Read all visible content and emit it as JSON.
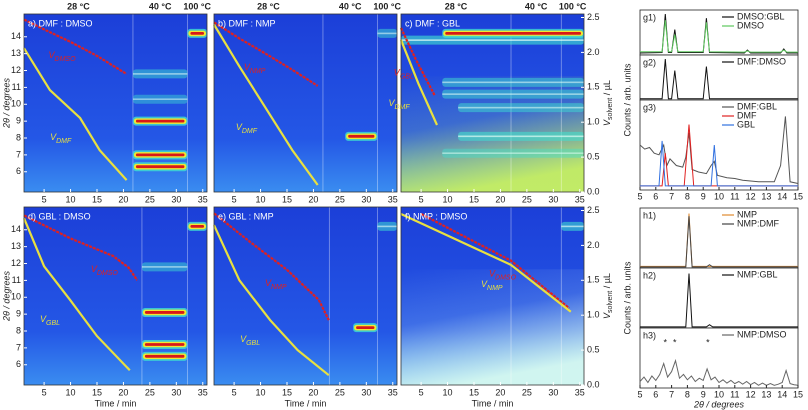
{
  "chart_data": [
    {
      "type": "heatmap",
      "title": "a) DMF : DMSO",
      "xlim": [
        1.2,
        35.8
      ],
      "ylim": [
        4.8,
        15.35
      ],
      "y2lim": [
        0,
        2.55
      ],
      "xticks": [
        5,
        10,
        15,
        20,
        25,
        30,
        35
      ],
      "yticks": [
        6,
        7,
        8,
        9,
        10,
        11,
        12,
        13,
        14
      ],
      "ylabel": "2θ / degrees",
      "phase_labels": [
        "28 °C",
        "40 °C",
        "100 °C"
      ],
      "boundaries": [
        21.8,
        32.1
      ],
      "streaks": [
        [
          14.2,
          32.1,
          35.8,
          1
        ],
        [
          11.8,
          21.8,
          32.1,
          0.3
        ],
        [
          10.3,
          21.8,
          32.1,
          0.2
        ],
        [
          9.0,
          21.8,
          32.1,
          1
        ],
        [
          7.0,
          21.8,
          32.1,
          1
        ],
        [
          6.3,
          21.8,
          32.1,
          1
        ]
      ],
      "series": [
        {
          "label": "V",
          "sub": "DMSO",
          "color": "#e02020",
          "x": [
            1.2,
            5,
            10,
            15,
            20.6
          ],
          "values": [
            2.47,
            2.33,
            2.15,
            1.95,
            1.69
          ]
        },
        {
          "label": "V",
          "sub": "DMF",
          "color": "#e8e040",
          "x": [
            1.2,
            6.1,
            11.8,
            15.5,
            20.6
          ],
          "values": [
            2.06,
            1.46,
            1.06,
            0.6,
            0.17
          ]
        }
      ]
    },
    {
      "type": "heatmap",
      "title": "b) DMF : NMP",
      "xlim": [
        1.2,
        35.8
      ],
      "ylim": [
        4.8,
        15.35
      ],
      "y2lim": [
        0,
        2.55
      ],
      "xticks": [
        5,
        10,
        15,
        20,
        25,
        30,
        35
      ],
      "phase_labels": [
        "28 °C",
        "40 °C",
        "100 °C"
      ],
      "boundaries": [
        21.8,
        32.1
      ],
      "streaks": [
        [
          14.2,
          32.1,
          35.8,
          0.3
        ],
        [
          8.1,
          26,
          32.1,
          1
        ]
      ],
      "series": [
        {
          "label": "V",
          "sub": "NMP",
          "color": "#e02020",
          "x": [
            1.2,
            6,
            11,
            16,
            20.8
          ],
          "values": [
            2.43,
            2.2,
            1.98,
            1.75,
            1.52
          ]
        },
        {
          "label": "V",
          "sub": "DMF",
          "color": "#e8e040",
          "x": [
            1.2,
            6,
            11,
            16,
            20.8
          ],
          "values": [
            2.4,
            1.8,
            1.2,
            0.6,
            0.1
          ]
        }
      ]
    },
    {
      "type": "heatmap",
      "title": "c) DMF : GBL",
      "xlim": [
        1.2,
        35.8
      ],
      "ylim": [
        4.8,
        15.35
      ],
      "y2lim": [
        0,
        2.55
      ],
      "xticks": [
        5,
        10,
        15,
        20,
        25,
        30,
        35
      ],
      "y2ticks": [
        {
          "value": 0,
          "label": "0.0"
        },
        0.5,
        {
          "value": 1,
          "label": "1.0"
        },
        1.5,
        {
          "value": 2,
          "label": "2.0"
        },
        2.5
      ],
      "y2label": {
        "main": "V",
        "sub": "solvent",
        "unit": " / µL"
      },
      "phase_labels": [
        "28 °C",
        "40 °C",
        "100 °C"
      ],
      "boundaries": [
        22,
        31.5
      ],
      "haze": "#c8f060",
      "streaks": [
        [
          14.2,
          9,
          35.8,
          0.9
        ],
        [
          13.8,
          1.2,
          35.8,
          0.6
        ],
        [
          11.3,
          9,
          35.8,
          0.3
        ],
        [
          10.6,
          9,
          35.8,
          0.3
        ],
        [
          9.8,
          12,
          35.8,
          0.3
        ],
        [
          8.1,
          12,
          35.8,
          0.5
        ],
        [
          7.1,
          9,
          35.8,
          0.2
        ]
      ],
      "series": [
        {
          "label": "V",
          "sub": "GBL",
          "color": "#e02020",
          "x": [
            1.2,
            4,
            7.6
          ],
          "values": [
            2.35,
            1.9,
            1.38
          ]
        },
        {
          "label": "V",
          "sub": "DMF",
          "color": "#e8e040",
          "x": [
            1.2,
            4.5,
            8
          ],
          "values": [
            2.18,
            1.55,
            0.96
          ]
        }
      ]
    },
    {
      "type": "heatmap",
      "title": "d) GBL : DMSO",
      "xlim": [
        1.2,
        35.8
      ],
      "ylim": [
        4.8,
        15.35
      ],
      "y2lim": [
        0,
        2.55
      ],
      "xticks": [
        5,
        10,
        15,
        20,
        25,
        30,
        35
      ],
      "yticks": [
        6,
        7,
        8,
        9,
        10,
        11,
        12,
        13,
        14
      ],
      "ylabel": "2θ / degrees",
      "xlabel": "Time / min",
      "boundaries": [
        23.5,
        32.1
      ],
      "streaks": [
        [
          14.2,
          32.1,
          35.8,
          1
        ],
        [
          11.8,
          23.5,
          32.1,
          0.3
        ],
        [
          9.1,
          23.5,
          32.1,
          1
        ],
        [
          7.2,
          23.5,
          32.1,
          1
        ],
        [
          6.5,
          23.5,
          32.1,
          1
        ]
      ],
      "series": [
        {
          "label": "V",
          "sub": "DMSO",
          "color": "#e02020",
          "x": [
            1.2,
            10,
            18,
            21,
            22.6
          ],
          "values": [
            2.43,
            2.1,
            1.85,
            1.68,
            1.5
          ]
        },
        {
          "label": "V",
          "sub": "GBL",
          "color": "#e8e040",
          "x": [
            1.2,
            5,
            9.9,
            15,
            21.2
          ],
          "values": [
            2.39,
            1.7,
            1.22,
            0.7,
            0.21
          ]
        }
      ]
    },
    {
      "type": "heatmap",
      "title": "e) GBL : NMP",
      "xlim": [
        1.2,
        35.8
      ],
      "ylim": [
        4.8,
        15.35
      ],
      "y2lim": [
        0,
        2.55
      ],
      "xticks": [
        5,
        10,
        15,
        20,
        25,
        30,
        35
      ],
      "xlabel": "Time / min",
      "boundaries": [
        23,
        32.1
      ],
      "streaks": [
        [
          14.2,
          32.1,
          35.8,
          0.4
        ],
        [
          8.2,
          27.5,
          32.1,
          1
        ]
      ],
      "series": [
        {
          "label": "V",
          "sub": "NMP",
          "color": "#e02020",
          "x": [
            1.2,
            8,
            15,
            21,
            22.9
          ],
          "values": [
            2.46,
            2.05,
            1.65,
            1.22,
            0.93
          ]
        },
        {
          "label": "V",
          "sub": "GBL",
          "color": "#e8e040",
          "x": [
            1.2,
            6,
            11.8,
            17,
            22.9
          ],
          "values": [
            2.29,
            1.5,
            0.93,
            0.5,
            0.14
          ]
        }
      ]
    },
    {
      "type": "heatmap",
      "title": "f) NMP : DMSO",
      "xlim": [
        1.2,
        35.8
      ],
      "ylim": [
        4.8,
        15.35
      ],
      "y2lim": [
        0,
        2.55
      ],
      "xticks": [
        5,
        10,
        15,
        20,
        25,
        30,
        35
      ],
      "xlabel": "Time / min",
      "y2ticks": [
        {
          "value": 0,
          "label": "0.0"
        },
        0.5,
        {
          "value": 1,
          "label": "1.0"
        },
        1.5,
        {
          "value": 2,
          "label": "2.0"
        },
        2.5
      ],
      "y2label": {
        "main": "V",
        "sub": "solvent",
        "unit": " / µL"
      },
      "boundaries": [
        22,
        31.5
      ],
      "haze": "#d8fbf0",
      "streaks": [
        [
          14.2,
          31.5,
          35.8,
          0.5
        ]
      ],
      "series": [
        {
          "label": "V",
          "sub": "DMSO",
          "color": "#e02020",
          "x": [
            5,
            22,
            33
          ],
          "values": [
            2.45,
            1.78,
            1.1
          ]
        },
        {
          "label": "V",
          "sub": "NMP",
          "color": "#e8e040",
          "x": [
            1.2,
            22,
            33.3
          ],
          "values": [
            2.45,
            1.72,
            1.05
          ]
        }
      ]
    },
    {
      "type": "line",
      "title": "g1)",
      "xlim": [
        5,
        15
      ],
      "ylim": [
        0,
        1.1
      ],
      "series": [
        {
          "name": "DMSO:GBL",
          "color": "#111111",
          "x": [
            5,
            6.4,
            6.6,
            6.8,
            7.0,
            7.2,
            7.4,
            9.0,
            9.2,
            9.4,
            11.6,
            11.8,
            12.0,
            13.9,
            14.1,
            14.3,
            15
          ],
          "values": [
            0.05,
            0.06,
            1.0,
            0.06,
            0.06,
            0.62,
            0.06,
            0.06,
            0.9,
            0.06,
            0.05,
            0.12,
            0.05,
            0.05,
            0.15,
            0.05,
            0.05
          ]
        },
        {
          "name": "DMSO",
          "color": "#5ec85e",
          "x": [
            5,
            6.4,
            6.6,
            6.8,
            7.0,
            7.2,
            7.4,
            9.0,
            9.2,
            9.4,
            11.6,
            11.8,
            12.0,
            13.9,
            14.1,
            14.3,
            15
          ],
          "values": [
            0.08,
            0.08,
            0.85,
            0.08,
            0.08,
            0.5,
            0.08,
            0.08,
            0.8,
            0.08,
            0.07,
            0.1,
            0.07,
            0.07,
            0.12,
            0.07,
            0.07
          ]
        }
      ]
    },
    {
      "type": "line",
      "title": "g2)",
      "xlim": [
        5,
        15
      ],
      "ylim": [
        0,
        1.1
      ],
      "ylabel": "Counts / arb. units",
      "series": [
        {
          "name": "DMF:DMSO",
          "color": "#111111",
          "x": [
            5,
            6.4,
            6.6,
            6.8,
            7.0,
            7.2,
            7.4,
            9.0,
            9.2,
            9.4,
            15
          ],
          "values": [
            0.03,
            0.03,
            1.0,
            0.03,
            0.03,
            0.72,
            0.03,
            0.03,
            0.82,
            0.03,
            0.03
          ]
        }
      ]
    },
    {
      "type": "line",
      "title": "g3)",
      "xlim": [
        5,
        15
      ],
      "ylim": [
        0,
        1.1
      ],
      "xticks": [
        5,
        6,
        7,
        8,
        9,
        10,
        11,
        12,
        13,
        14,
        15
      ],
      "series": [
        {
          "name": "DMF:GBL",
          "color": "#555555",
          "x": [
            5,
            5.3,
            5.6,
            5.9,
            6.2,
            6.5,
            6.7,
            6.9,
            7.3,
            7.7,
            7.9,
            8.1,
            8.3,
            8.7,
            9.2,
            9.5,
            9.7,
            9.9,
            10.5,
            11,
            11.5,
            12,
            12.5,
            13,
            13.5,
            13.9,
            14.2,
            14.5,
            15
          ],
          "values": [
            0.55,
            0.5,
            0.52,
            0.45,
            0.43,
            0.55,
            0.3,
            0.38,
            0.3,
            0.28,
            0.4,
            0.7,
            0.25,
            0.22,
            0.2,
            0.3,
            0.35,
            0.18,
            0.15,
            0.14,
            0.12,
            0.11,
            0.1,
            0.1,
            0.1,
            0.3,
            0.9,
            0.1,
            0.08
          ]
        },
        {
          "name": "DMF",
          "color": "#e02020",
          "x": [
            5,
            6.4,
            6.6,
            6.8,
            7.8,
            8.1,
            8.4,
            15
          ],
          "values": [
            0.05,
            0.05,
            0.45,
            0.05,
            0.05,
            0.8,
            0.05,
            0.05
          ]
        },
        {
          "name": "GBL",
          "color": "#3070e0",
          "x": [
            5,
            6.2,
            6.4,
            6.6,
            9.5,
            9.7,
            9.9,
            15
          ],
          "values": [
            0.05,
            0.05,
            0.6,
            0.05,
            0.05,
            0.55,
            0.05,
            0.05
          ]
        }
      ]
    },
    {
      "type": "line",
      "title": "h1)",
      "xlim": [
        5,
        15
      ],
      "ylim": [
        0,
        1.1
      ],
      "series": [
        {
          "name": "NMP",
          "color": "#e08a30",
          "x": [
            5,
            7.9,
            8.1,
            8.3,
            15
          ],
          "values": [
            0.03,
            0.03,
            1.0,
            0.03,
            0.03
          ]
        },
        {
          "name": "NMP:DMF",
          "color": "#444444",
          "x": [
            5,
            7.9,
            8.1,
            8.3,
            9.2,
            9.4,
            9.6,
            15
          ],
          "values": [
            0.02,
            0.02,
            0.95,
            0.02,
            0.02,
            0.06,
            0.02,
            0.02
          ]
        }
      ]
    },
    {
      "type": "line",
      "title": "h2)",
      "xlim": [
        5,
        15
      ],
      "ylim": [
        0,
        1.1
      ],
      "ylabel": "Counts / arb. units",
      "series": [
        {
          "name": "NMP:GBL",
          "color": "#111111",
          "x": [
            5,
            7.9,
            8.1,
            8.3,
            9.2,
            9.4,
            9.6,
            15
          ],
          "values": [
            0.02,
            0.02,
            1.0,
            0.02,
            0.02,
            0.06,
            0.02,
            0.02
          ]
        }
      ]
    },
    {
      "type": "line",
      "title": "h3)",
      "xlim": [
        5,
        15
      ],
      "ylim": [
        0,
        1.1
      ],
      "xticks": [
        5,
        6,
        7,
        8,
        9,
        10,
        11,
        12,
        13,
        14,
        15
      ],
      "xlabel": "2θ / degrees",
      "annotations": [
        {
          "text": "*",
          "x": 6.6
        },
        {
          "text": "*",
          "x": 7.2
        },
        {
          "text": "*",
          "x": 9.3
        }
      ],
      "series": [
        {
          "name": "NMP:DMSO",
          "color": "#666666",
          "x": [
            5,
            5.25,
            5.5,
            5.75,
            6,
            6.25,
            6.5,
            6.75,
            7,
            7.25,
            7.5,
            7.75,
            8,
            8.25,
            8.5,
            8.75,
            9,
            9.25,
            9.5,
            9.75,
            10,
            10.25,
            10.5,
            10.75,
            11,
            11.25,
            11.5,
            11.75,
            12,
            12.25,
            12.5,
            12.75,
            13,
            13.25,
            13.5,
            13.75,
            14,
            14.25,
            14.5,
            14.75,
            15
          ],
          "values": [
            0.12,
            0.2,
            0.1,
            0.22,
            0.14,
            0.25,
            0.45,
            0.2,
            0.3,
            0.5,
            0.18,
            0.25,
            0.15,
            0.22,
            0.12,
            0.18,
            0.14,
            0.35,
            0.15,
            0.2,
            0.1,
            0.15,
            0.09,
            0.14,
            0.08,
            0.12,
            0.07,
            0.12,
            0.06,
            0.1,
            0.05,
            0.09,
            0.05,
            0.08,
            0.05,
            0.07,
            0.1,
            0.32,
            0.08,
            0.06,
            0.05
          ]
        }
      ]
    }
  ]
}
